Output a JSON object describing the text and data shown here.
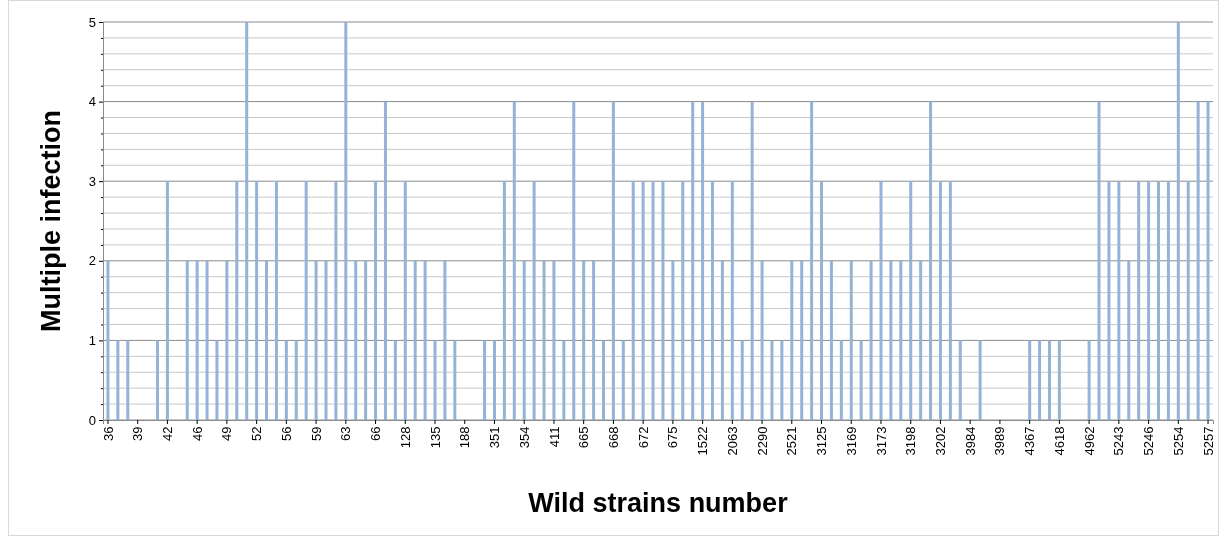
{
  "chart_data": {
    "type": "bar",
    "xlabel": "Wild strains number",
    "ylabel": "Multiple infection",
    "categories": [
      "36",
      null,
      null,
      "39",
      null,
      null,
      "42",
      null,
      null,
      "46",
      null,
      null,
      "49",
      null,
      null,
      "52",
      null,
      null,
      "56",
      null,
      null,
      "59",
      null,
      null,
      "63",
      null,
      null,
      "66",
      null,
      null,
      "128",
      null,
      null,
      "135",
      null,
      null,
      "188",
      null,
      null,
      "351",
      null,
      null,
      "354",
      null,
      null,
      "411",
      null,
      null,
      "665",
      null,
      null,
      "668",
      null,
      null,
      "672",
      null,
      null,
      "675",
      null,
      null,
      "1522",
      null,
      null,
      "2063",
      null,
      null,
      "2290",
      null,
      null,
      "2521",
      null,
      null,
      "3125",
      null,
      null,
      "3169",
      null,
      null,
      "3173",
      null,
      null,
      "3198",
      null,
      null,
      "3202",
      null,
      null,
      "3984",
      null,
      null,
      "3989",
      null,
      null,
      "4367",
      null,
      null,
      "4618",
      null,
      null,
      "4962",
      null,
      null,
      "5243",
      null,
      null,
      "5246",
      null,
      null,
      "5254",
      null,
      null,
      "5257"
    ],
    "values": [
      2,
      1,
      1,
      0,
      0,
      1,
      3,
      0,
      2,
      2,
      2,
      1,
      2,
      3,
      5,
      3,
      2,
      3,
      1,
      1,
      3,
      2,
      2,
      3,
      5,
      2,
      2,
      3,
      4,
      1,
      3,
      2,
      2,
      1,
      2,
      1,
      0,
      0,
      1,
      1,
      3,
      4,
      2,
      3,
      2,
      2,
      1,
      4,
      2,
      2,
      1,
      4,
      1,
      3,
      3,
      3,
      3,
      2,
      3,
      4,
      4,
      3,
      2,
      3,
      1,
      4,
      2,
      1,
      1,
      2,
      2,
      4,
      3,
      2,
      1,
      2,
      1,
      2,
      3,
      2,
      2,
      3,
      2,
      4,
      3,
      3,
      1,
      0,
      1,
      0,
      0,
      0,
      0,
      1,
      1,
      1,
      1,
      0,
      0,
      1,
      4,
      3,
      3,
      2,
      3,
      3,
      3,
      3,
      5,
      3,
      4,
      4
    ],
    "color": "#95b3d7",
    "ylim": [
      0,
      5
    ],
    "yticks": [
      0,
      {
        "value": 0.2,
        "label": null
      },
      {
        "value": 0.4,
        "label": null
      },
      {
        "value": 0.6,
        "label": null
      },
      {
        "value": 0.8,
        "label": null
      },
      1,
      {
        "value": 1.2,
        "label": null
      },
      {
        "value": 1.4,
        "label": null
      },
      {
        "value": 1.6,
        "label": null
      },
      {
        "value": 1.8,
        "label": null
      },
      2,
      {
        "value": 2.2,
        "label": null
      },
      {
        "value": 2.4,
        "label": null
      },
      {
        "value": 2.6,
        "label": null
      },
      {
        "value": 2.8,
        "label": null
      },
      3,
      {
        "value": 3.2,
        "label": null
      },
      {
        "value": 3.4,
        "label": null
      },
      {
        "value": 3.6,
        "label": null
      },
      {
        "value": 3.8,
        "label": null
      },
      4,
      {
        "value": 4.2,
        "label": null
      },
      {
        "value": 4.4,
        "label": null
      },
      {
        "value": 4.6,
        "label": null
      },
      {
        "value": 4.8,
        "label": null
      },
      5
    ],
    "grid": true
  }
}
